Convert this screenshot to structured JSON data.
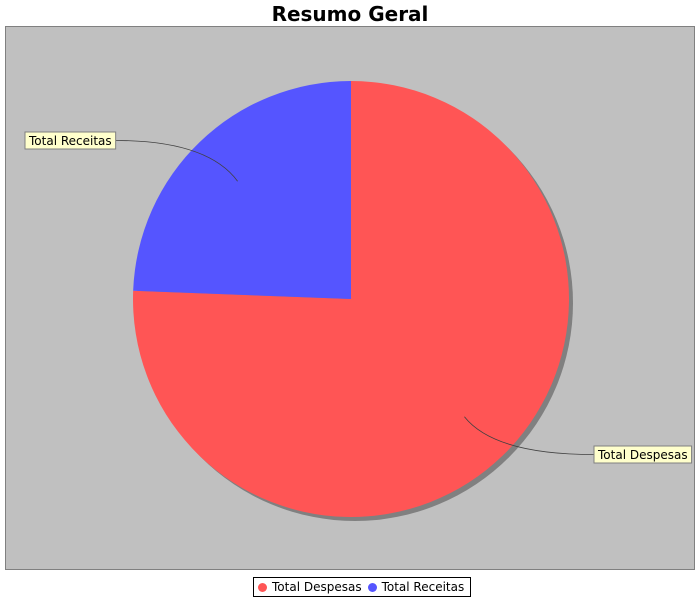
{
  "chart_data": {
    "type": "pie",
    "title": "Resumo Geral",
    "series": [
      {
        "name": "Total Despesas",
        "value": 75.6,
        "color": "#ff5555"
      },
      {
        "name": "Total Receitas",
        "value": 24.4,
        "color": "#5555ff"
      }
    ],
    "start_angle_deg": 90,
    "direction": "clockwise",
    "legend_position": "bottom-center",
    "background_color": "#c0c0c0"
  }
}
